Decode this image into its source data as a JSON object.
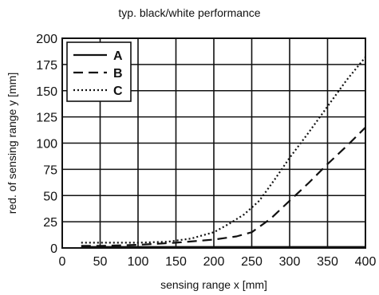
{
  "chart_data": {
    "type": "line",
    "title": "typ. black/white performance",
    "xlabel": "sensing range x [mm]",
    "ylabel": "red. of sensing range y [mm]",
    "xlim": [
      0,
      400
    ],
    "ylim": [
      0,
      200
    ],
    "xticks": [
      0,
      50,
      100,
      150,
      200,
      250,
      300,
      350,
      400
    ],
    "yticks": [
      0,
      25,
      50,
      75,
      100,
      125,
      150,
      175,
      200
    ],
    "grid": true,
    "legend_position": "top-left",
    "series": [
      {
        "name": "A",
        "style": "solid",
        "x": [
          25,
          50,
          100,
          150,
          200,
          250,
          300,
          350,
          400
        ],
        "y": [
          1,
          1,
          1,
          1,
          1,
          1,
          1,
          1,
          1
        ]
      },
      {
        "name": "B",
        "style": "dashed",
        "x": [
          25,
          50,
          100,
          150,
          200,
          230,
          250,
          275,
          300,
          325,
          350,
          375,
          400
        ],
        "y": [
          2,
          2,
          3,
          5,
          8,
          11,
          15,
          28,
          45,
          62,
          80,
          97,
          115
        ]
      },
      {
        "name": "C",
        "style": "dotted",
        "x": [
          25,
          50,
          100,
          140,
          170,
          200,
          220,
          240,
          260,
          280,
          300,
          325,
          350,
          375,
          400
        ],
        "y": [
          5,
          5,
          5,
          6,
          9,
          15,
          23,
          32,
          45,
          65,
          86,
          110,
          135,
          160,
          182
        ]
      }
    ]
  }
}
